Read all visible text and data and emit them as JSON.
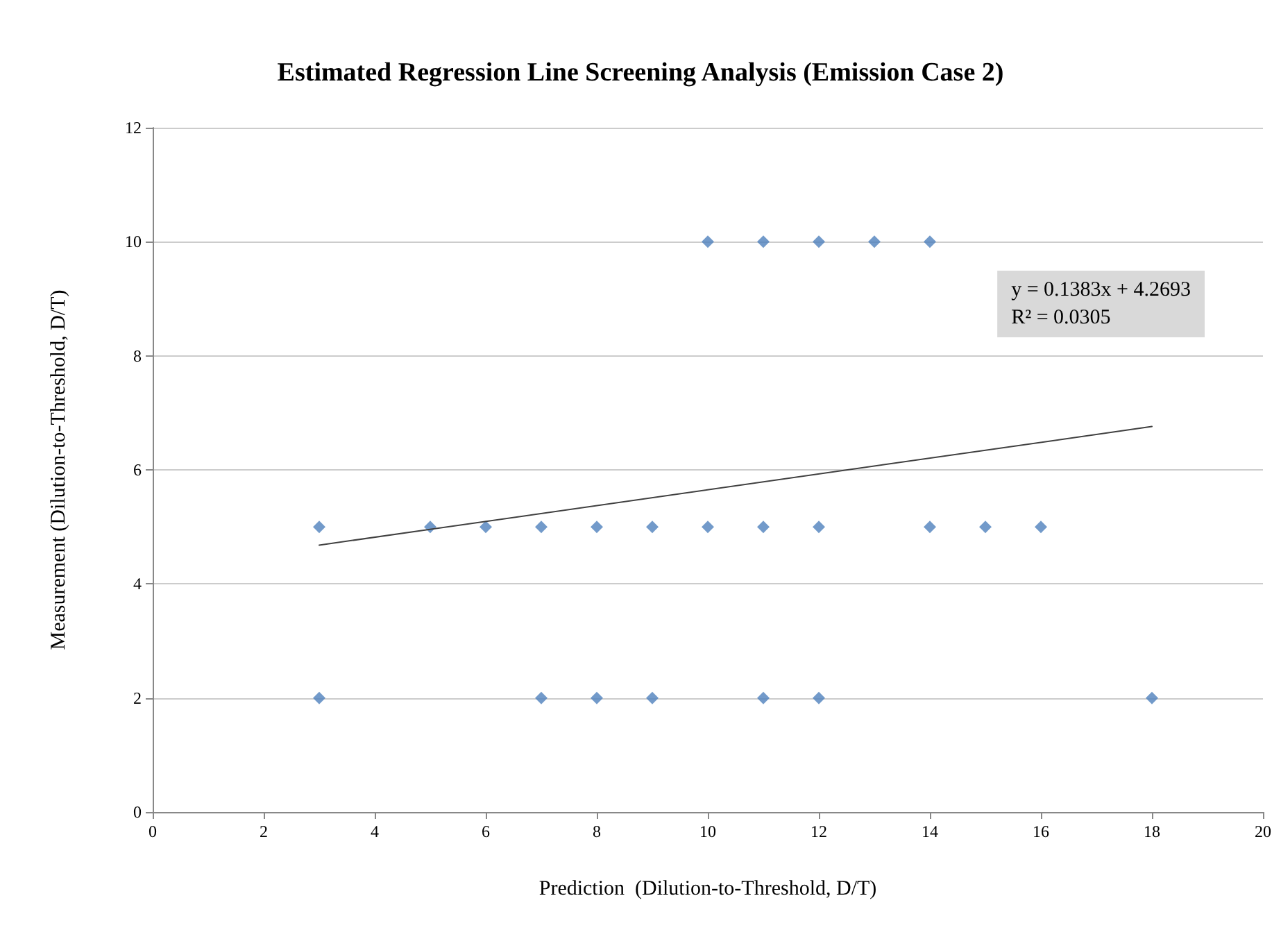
{
  "chart_data": {
    "type": "scatter",
    "title": "Estimated Regression Line Screening Analysis (Emission Case 2)",
    "xlabel": "Prediction  (Dilution-to-Threshold, D/T)",
    "ylabel": "Measurement (Dilution-to-Threshold, D/T)",
    "annotations": [
      "y = 0.1383x + 4.2693",
      "R² = 0.0305"
    ],
    "xlim": [
      0,
      20
    ],
    "xticks": [
      0,
      2,
      4,
      6,
      8,
      10,
      12,
      14,
      16,
      18,
      20
    ],
    "ylim": [
      0,
      12
    ],
    "yticks": [
      0,
      2,
      4,
      6,
      8,
      10,
      12
    ],
    "grid": "y",
    "marker": "diamond",
    "series": [
      {
        "type": "scatter",
        "color": "#4f81bd",
        "x": [
          10,
          11,
          12,
          13,
          14,
          3,
          5,
          6,
          7,
          8,
          9,
          10,
          11,
          12,
          14,
          15,
          16,
          3,
          7,
          8,
          9,
          11,
          12,
          18
        ],
        "values": [
          10,
          10,
          10,
          10,
          10,
          5,
          5,
          5,
          5,
          5,
          5,
          5,
          5,
          5,
          5,
          5,
          5,
          2,
          2,
          2,
          2,
          2,
          2,
          2
        ]
      },
      {
        "type": "line",
        "color": "#404040",
        "line_style": "solid",
        "marker": "none",
        "x": [
          3,
          18
        ],
        "values": [
          4.68,
          6.76
        ]
      }
    ]
  }
}
